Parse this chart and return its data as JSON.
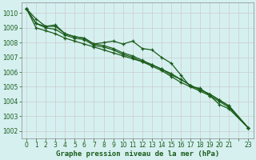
{
  "title": "Graphe pression niveau de la mer (hPa)",
  "bg_color": "#d6f0f0",
  "grid_color": "#c0c0c0",
  "line_color": "#1a5c1a",
  "xlim": [
    -0.5,
    23.5
  ],
  "ylim": [
    1001.5,
    1010.7
  ],
  "xtick_labels": [
    "0",
    "1",
    "2",
    "3",
    "4",
    "5",
    "6",
    "7",
    "8",
    "9",
    "10",
    "11",
    "12",
    "13",
    "14",
    "15",
    "16",
    "17",
    "18",
    "19",
    "20",
    "21",
    "",
    "23"
  ],
  "xtick_pos": [
    0,
    1,
    2,
    3,
    4,
    5,
    6,
    7,
    8,
    9,
    10,
    11,
    12,
    13,
    14,
    15,
    16,
    17,
    18,
    19,
    20,
    21,
    22,
    23
  ],
  "yticks": [
    1002,
    1003,
    1004,
    1005,
    1006,
    1007,
    1008,
    1009,
    1010
  ],
  "series": [
    [
      1010.3,
      1009.6,
      1009.1,
      1009.2,
      1008.6,
      1008.4,
      1008.3,
      1007.9,
      1008.0,
      1008.1,
      1007.9,
      1008.1,
      1007.6,
      1007.5,
      1007.0,
      1006.6,
      1005.8,
      1005.0,
      1004.9,
      1004.4,
      1003.8,
      1003.5,
      null,
      1002.2
    ],
    [
      1010.3,
      1009.3,
      1009.1,
      1009.1,
      1008.6,
      1008.4,
      1008.3,
      1007.9,
      1007.8,
      1007.6,
      1007.3,
      1007.1,
      1006.8,
      1006.5,
      1006.2,
      1005.8,
      1005.5,
      1005.1,
      1004.8,
      1004.5,
      1004.1,
      1003.7,
      null,
      1002.2
    ],
    [
      1010.3,
      1009.3,
      1009.0,
      1008.9,
      1008.5,
      1008.3,
      1008.2,
      1007.8,
      1007.7,
      1007.5,
      1007.2,
      1007.0,
      1006.7,
      1006.4,
      1006.1,
      1005.7,
      1005.3,
      1005.0,
      1004.7,
      1004.4,
      1004.0,
      1003.6,
      null,
      1002.2
    ],
    [
      1010.3,
      1009.0,
      1008.8,
      1008.6,
      1008.3,
      1008.1,
      1007.9,
      1007.7,
      1007.5,
      1007.3,
      1007.1,
      1006.9,
      1006.7,
      1006.5,
      1006.2,
      1005.9,
      1005.5,
      1005.1,
      1004.8,
      1004.5,
      1004.1,
      1003.7,
      null,
      1002.2
    ]
  ],
  "x_values": [
    0,
    1,
    2,
    3,
    4,
    5,
    6,
    7,
    8,
    9,
    10,
    11,
    12,
    13,
    14,
    15,
    16,
    17,
    18,
    19,
    20,
    21,
    22,
    23
  ]
}
